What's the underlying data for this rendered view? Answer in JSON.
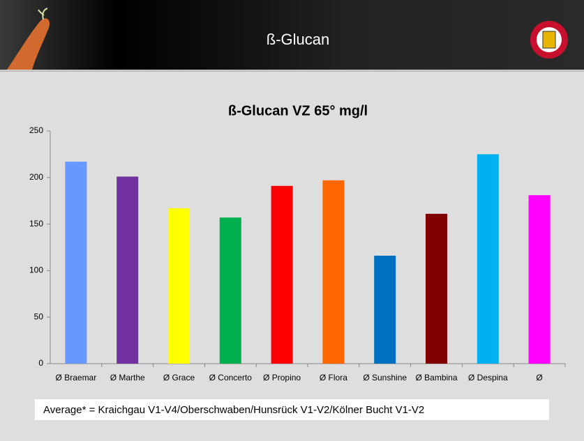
{
  "header": {
    "title": "ß-Glucan"
  },
  "chart_data": {
    "type": "bar",
    "title": "ß-Glucan VZ 65° mg/l",
    "categories": [
      "Ø Braemar",
      "Ø Marthe",
      "Ø Grace",
      "Ø Concerto",
      "Ø Propino",
      "Ø Flora",
      "Ø Sunshine",
      "Ø Bambina",
      "Ø Despina",
      "Ø"
    ],
    "values": [
      217,
      201,
      167,
      157,
      191,
      197,
      116,
      161,
      225,
      181
    ],
    "colors": [
      "#6699ff",
      "#7030a0",
      "#ffff00",
      "#00b050",
      "#ff0000",
      "#ff6600",
      "#0070c0",
      "#800000",
      "#00b0f0",
      "#ff00ff"
    ],
    "ylim": [
      0,
      250
    ],
    "yticks": [
      0,
      50,
      100,
      150,
      200,
      250
    ],
    "grid": false
  },
  "footnote": "Average* = Kraichgau V1-V4/Oberschwaben/Hunsrück V1-V2/Kölner Bucht V1-V2"
}
